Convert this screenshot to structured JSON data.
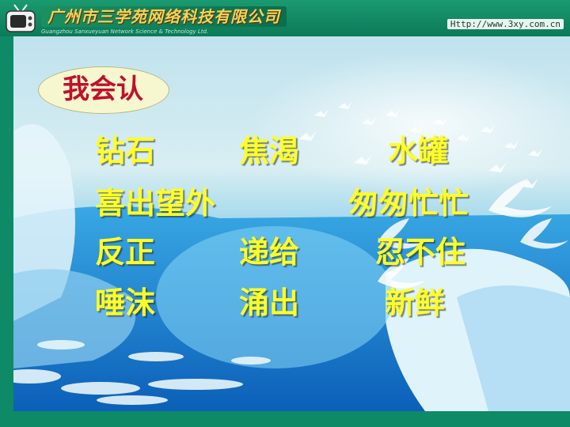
{
  "header": {
    "title_cn": "广州市三学苑网络科技有限公司",
    "title_en": "Guangzhou Sanxueyuan Network Science & Technology Ltd.",
    "url": "Http://www.3xy.com.cn"
  },
  "label": "我会认",
  "words": {
    "row1": [
      "钻石",
      "焦渴",
      "水罐"
    ],
    "row2": [
      "喜出望外",
      "匆匆忙忙"
    ],
    "row3": [
      "反正",
      "递给",
      "忍不住"
    ],
    "row4": [
      "唾沫",
      "涌出",
      "新鲜"
    ]
  },
  "colors": {
    "word": "#ffff22",
    "label_text": "#c0102c",
    "label_bg": "#f7f7cf",
    "frame": "#0f8a66"
  }
}
